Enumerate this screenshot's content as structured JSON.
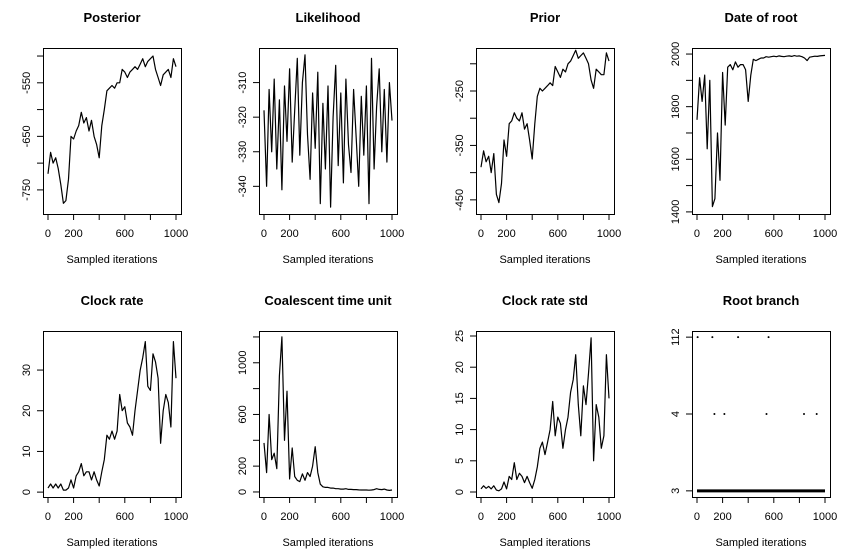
{
  "chart_data": [
    {
      "type": "line",
      "title": "Posterior",
      "xlabel": "Sampled iterations",
      "ylabel": "",
      "xlim": [
        -39,
        1039
      ],
      "ylim": [
        -795,
        -485
      ],
      "xticks": [
        0,
        200,
        400,
        600,
        800,
        1000
      ],
      "xtick_labels": [
        "0",
        "200",
        "",
        "600",
        "",
        "1000"
      ],
      "yticks": [
        -750,
        -700,
        -650,
        -600,
        -550,
        -500
      ],
      "ytick_labels": [
        "-750",
        "",
        "-650",
        "",
        "-550",
        ""
      ],
      "x_step": 20,
      "values": [
        -720,
        -680,
        -700,
        -690,
        -710,
        -740,
        -775,
        -770,
        -730,
        -650,
        -655,
        -640,
        -630,
        -605,
        -625,
        -615,
        -640,
        -620,
        -650,
        -665,
        -690,
        -630,
        -600,
        -565,
        -560,
        -555,
        -560,
        -550,
        -550,
        -525,
        -530,
        -540,
        -530,
        -525,
        -520,
        -525,
        -515,
        -505,
        -520,
        -510,
        -505,
        -500,
        -525,
        -540,
        -555,
        -535,
        -530,
        -525,
        -540,
        -505,
        -520
      ]
    },
    {
      "type": "line",
      "title": "Likelihood",
      "xlabel": "Sampled iterations",
      "ylabel": "",
      "xlim": [
        -39,
        1039
      ],
      "ylim": [
        -348,
        -300
      ],
      "xticks": [
        0,
        200,
        400,
        600,
        800,
        1000
      ],
      "xtick_labels": [
        "0",
        "200",
        "",
        "600",
        "",
        "1000"
      ],
      "yticks": [
        -340,
        -330,
        -320,
        -310
      ],
      "ytick_labels": [
        "-340",
        "-330",
        "-320",
        "-310"
      ],
      "x_step": 20,
      "values": [
        -318,
        -340,
        -312,
        -330,
        -309,
        -335,
        -315,
        -341,
        -311,
        -327,
        -306,
        -333,
        -318,
        -303,
        -331,
        -310,
        -302,
        -325,
        -338,
        -313,
        -329,
        -307,
        -345,
        -316,
        -335,
        -311,
        -346,
        -320,
        -305,
        -334,
        -313,
        -339,
        -309,
        -328,
        -336,
        -312,
        -326,
        -340,
        -314,
        -331,
        -311,
        -345,
        -303,
        -335,
        -317,
        -306,
        -330,
        -312,
        -333,
        -310,
        -321
      ]
    },
    {
      "type": "line",
      "title": "Prior",
      "xlabel": "Sampled iterations",
      "ylabel": "",
      "xlim": [
        -39,
        1039
      ],
      "ylim": [
        -476,
        -171
      ],
      "xticks": [
        0,
        200,
        400,
        600,
        800,
        1000
      ],
      "xtick_labels": [
        "0",
        "200",
        "",
        "600",
        "",
        "1000"
      ],
      "yticks": [
        -450,
        -400,
        -350,
        -300,
        -250,
        -200
      ],
      "ytick_labels": [
        "-450",
        "",
        "-350",
        "",
        "-250",
        ""
      ],
      "x_step": 20,
      "values": [
        -390,
        -360,
        -380,
        -370,
        -400,
        -365,
        -440,
        -455,
        -420,
        -340,
        -370,
        -310,
        -305,
        -290,
        -300,
        -305,
        -290,
        -320,
        -310,
        -340,
        -375,
        -310,
        -260,
        -245,
        -250,
        -245,
        -240,
        -235,
        -240,
        -205,
        -215,
        -225,
        -210,
        -215,
        -200,
        -195,
        -185,
        -175,
        -190,
        -185,
        -180,
        -190,
        -200,
        -230,
        -245,
        -210,
        -215,
        -220,
        -220,
        -180,
        -195
      ]
    },
    {
      "type": "line",
      "title": "Date of root",
      "xlabel": "Sampled iterations",
      "ylabel": "",
      "xlim": [
        -39,
        1039
      ],
      "ylim": [
        1392,
        2023
      ],
      "xticks": [
        0,
        200,
        400,
        600,
        800,
        1000
      ],
      "xtick_labels": [
        "0",
        "200",
        "",
        "600",
        "",
        "1000"
      ],
      "yticks": [
        1400,
        1500,
        1600,
        1700,
        1800,
        1900,
        2000
      ],
      "ytick_labels": [
        "1400",
        "",
        "1600",
        "",
        "1800",
        "",
        "2000"
      ],
      "x_step": 20,
      "values": [
        1750,
        1910,
        1820,
        1920,
        1640,
        1900,
        1420,
        1450,
        1700,
        1520,
        1930,
        1730,
        1950,
        1960,
        1940,
        1970,
        1950,
        1960,
        1960,
        1940,
        1820,
        1920,
        1980,
        1975,
        1980,
        1985,
        1985,
        1990,
        1988,
        1990,
        1992,
        1990,
        1993,
        1991,
        1990,
        1992,
        1993,
        1991,
        1994,
        1992,
        1993,
        1990,
        1985,
        1975,
        1988,
        1990,
        1992,
        1991,
        1993,
        1994,
        1995
      ]
    },
    {
      "type": "line",
      "title": "Clock rate",
      "xlabel": "Sampled iterations",
      "ylabel": "",
      "xlim": [
        -39,
        1039
      ],
      "ylim": [
        -1.2,
        39.6
      ],
      "xticks": [
        0,
        200,
        400,
        600,
        800,
        1000
      ],
      "xtick_labels": [
        "0",
        "200",
        "",
        "600",
        "",
        "1000"
      ],
      "yticks": [
        0,
        10,
        20,
        30
      ],
      "ytick_labels": [
        "0",
        "10",
        "20",
        "30"
      ],
      "x_step": 20,
      "values": [
        1,
        2,
        1,
        2,
        1,
        2,
        0.5,
        0.5,
        1,
        3,
        1,
        4,
        5,
        7,
        4,
        5,
        5,
        3,
        5,
        3,
        1.5,
        5,
        8,
        14,
        13,
        15,
        13,
        15,
        24,
        20,
        21,
        17,
        16,
        14,
        20,
        25,
        30,
        33,
        37,
        26,
        25,
        34,
        32,
        28,
        12,
        20,
        24,
        22,
        16,
        37,
        28
      ]
    },
    {
      "type": "line",
      "title": "Coalescent time unit",
      "xlabel": "Sampled iterations",
      "ylabel": "",
      "xlim": [
        -39,
        1039
      ],
      "ylim": [
        -39,
        1246
      ],
      "xticks": [
        0,
        200,
        400,
        600,
        800,
        1000
      ],
      "xtick_labels": [
        "0",
        "200",
        "",
        "600",
        "",
        "1000"
      ],
      "yticks": [
        0,
        200,
        400,
        600,
        800,
        1000,
        1200
      ],
      "ytick_labels": [
        "0",
        "200",
        "",
        "600",
        "",
        "1000",
        ""
      ],
      "x_step": 20,
      "values": [
        380,
        150,
        600,
        250,
        300,
        180,
        900,
        1200,
        400,
        780,
        100,
        340,
        120,
        90,
        80,
        140,
        90,
        150,
        120,
        200,
        350,
        150,
        60,
        40,
        35,
        35,
        30,
        30,
        25,
        25,
        22,
        22,
        25,
        20,
        20,
        18,
        18,
        16,
        15,
        15,
        15,
        14,
        15,
        18,
        25,
        20,
        18,
        22,
        15,
        12,
        15
      ]
    },
    {
      "type": "line",
      "title": "Clock rate std",
      "xlabel": "Sampled iterations",
      "ylabel": "",
      "xlim": [
        -39,
        1039
      ],
      "ylim": [
        -0.8,
        25.8
      ],
      "xticks": [
        0,
        200,
        400,
        600,
        800,
        1000
      ],
      "xtick_labels": [
        "0",
        "200",
        "",
        "600",
        "",
        "1000"
      ],
      "yticks": [
        0,
        5,
        10,
        15,
        20,
        25
      ],
      "ytick_labels": [
        "0",
        "5",
        "10",
        "15",
        "20",
        "25"
      ],
      "x_step": 20,
      "values": [
        0.5,
        1,
        0.6,
        0.9,
        0.5,
        1,
        0.3,
        0.2,
        0.5,
        1.6,
        0.5,
        2.5,
        2,
        4.7,
        2,
        3,
        2.5,
        1.5,
        2.5,
        1.5,
        0.6,
        2,
        4,
        7,
        8,
        6,
        8,
        10,
        14.5,
        9,
        12,
        11,
        7,
        10,
        12,
        16,
        18,
        22,
        14,
        9,
        17,
        14,
        19,
        24.7,
        5,
        14,
        12,
        7,
        9,
        22,
        15
      ]
    },
    {
      "type": "scatter",
      "title": "Root branch",
      "xlabel": "Sampled iterations",
      "ylabel": "",
      "xlim": [
        -39,
        1039
      ],
      "xticks": [
        0,
        200,
        400,
        600,
        800,
        1000
      ],
      "xtick_labels": [
        "0",
        "200",
        "",
        "600",
        "",
        "1000"
      ],
      "y_levels": [
        "3",
        "4",
        "112"
      ],
      "ytick_labels": [
        "3",
        "4",
        "112"
      ],
      "default_level": "3",
      "points_level_112": [
        5,
        120,
        321,
        559
      ],
      "points_level_4": [
        136,
        214,
        543,
        836,
        935
      ]
    }
  ]
}
